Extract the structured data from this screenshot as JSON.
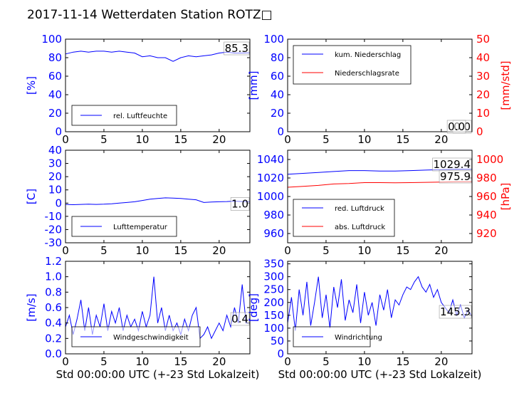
{
  "title": "2017-11-14 Wetterdaten Station ROTZ□",
  "colors": {
    "primary": "#0000ff",
    "secondary": "#ff0000",
    "text": "#000000",
    "frame": "#000000"
  },
  "chart_data": [
    {
      "id": "humidity",
      "type": "line",
      "ylabel": "[%]",
      "xlim": [
        0,
        24
      ],
      "ylim": [
        0,
        100
      ],
      "xticks": [
        0,
        5,
        10,
        15,
        20
      ],
      "yticks": [
        0,
        20,
        40,
        60,
        80,
        100
      ],
      "legend": {
        "placement": "lower-left",
        "entries": [
          {
            "label": "rel. Luftfeuchte",
            "color": "#0000ff"
          }
        ]
      },
      "current_value": "85.3",
      "series": [
        {
          "name": "rel. Luftfeuchte",
          "color": "#0000ff",
          "x": [
            0,
            1,
            2,
            3,
            4,
            5,
            6,
            7,
            8,
            9,
            10,
            11,
            12,
            13,
            14,
            15,
            16,
            17,
            18,
            19,
            20,
            21,
            22,
            23,
            24
          ],
          "y": [
            84,
            86,
            87,
            86,
            87,
            87,
            86,
            87,
            86,
            85,
            81,
            82,
            80,
            80,
            76,
            80,
            82,
            81,
            82,
            83,
            85,
            86,
            85,
            85,
            85.3
          ]
        }
      ]
    },
    {
      "id": "precipitation",
      "type": "line",
      "ylabel": "[mm]",
      "y2label": "[mm/std]",
      "xlim": [
        0,
        24
      ],
      "ylim": [
        0,
        100
      ],
      "y2lim": [
        0,
        50
      ],
      "xticks": [
        0,
        5,
        10,
        15,
        20
      ],
      "yticks": [
        0,
        20,
        40,
        60,
        80,
        100
      ],
      "y2ticks": [
        0,
        10,
        20,
        30,
        40,
        50
      ],
      "legend": {
        "placement": "upper-left",
        "entries": [
          {
            "label": "kum. Niederschlag",
            "color": "#0000ff"
          },
          {
            "label": "Niederschlagsrate",
            "color": "#ff0000"
          }
        ]
      },
      "current_values": [
        "0.0",
        "0.0"
      ],
      "series": [
        {
          "name": "kum. Niederschlag",
          "color": "#0000ff",
          "axis": "left",
          "x": [
            0,
            24
          ],
          "y": [
            0,
            0
          ]
        },
        {
          "name": "Niederschlagsrate",
          "color": "#ff0000",
          "axis": "right",
          "x": [
            0,
            24
          ],
          "y": [
            0,
            0
          ]
        }
      ]
    },
    {
      "id": "temperature",
      "type": "line",
      "ylabel": "[C]",
      "xlim": [
        0,
        24
      ],
      "ylim": [
        -30,
        40
      ],
      "xticks": [
        0,
        5,
        10,
        15,
        20
      ],
      "yticks": [
        -30,
        -20,
        -10,
        0,
        10,
        20,
        30,
        40
      ],
      "legend": {
        "placement": "lower-left",
        "entries": [
          {
            "label": "Lufttemperatur",
            "color": "#0000ff"
          }
        ]
      },
      "current_value": "1.0",
      "series": [
        {
          "name": "Lufttemperatur",
          "color": "#0000ff",
          "x": [
            0,
            1,
            2,
            3,
            4,
            5,
            6,
            7,
            8,
            9,
            10,
            11,
            12,
            13,
            14,
            15,
            16,
            17,
            18,
            19,
            20,
            21,
            22,
            23,
            24
          ],
          "y": [
            -1,
            -1.2,
            -1,
            -0.8,
            -1,
            -0.8,
            -0.5,
            0,
            0.5,
            1,
            2,
            3,
            3.5,
            4,
            3.8,
            3.5,
            3,
            2.5,
            0.5,
            0.8,
            1,
            1.2,
            1.5,
            1.2,
            1.0
          ]
        }
      ]
    },
    {
      "id": "pressure",
      "type": "line",
      "y2label": "[hPa]",
      "xlim": [
        0,
        24
      ],
      "ylim": [
        950,
        1050
      ],
      "y2lim": [
        910,
        1010
      ],
      "xticks": [
        0,
        5,
        10,
        15,
        20
      ],
      "yticks": [
        960,
        980,
        1000,
        1020,
        1040
      ],
      "y2ticks": [
        920,
        940,
        960,
        980,
        1000
      ],
      "legend": {
        "placement": "lower-left",
        "entries": [
          {
            "label": "red. Luftdruck",
            "color": "#0000ff"
          },
          {
            "label": "abs. Luftdruck",
            "color": "#ff0000"
          }
        ]
      },
      "current_values": [
        "1029.4",
        "975.9"
      ],
      "series": [
        {
          "name": "red. Luftdruck",
          "color": "#0000ff",
          "axis": "left",
          "x": [
            0,
            2,
            4,
            6,
            8,
            10,
            12,
            14,
            16,
            18,
            20,
            22,
            24
          ],
          "y": [
            1024,
            1025,
            1026,
            1027,
            1028,
            1028,
            1027.5,
            1027.5,
            1028,
            1028.5,
            1029,
            1029.5,
            1029.4
          ]
        },
        {
          "name": "abs. Luftdruck",
          "color": "#ff0000",
          "axis": "right",
          "x": [
            0,
            2,
            4,
            6,
            8,
            10,
            12,
            14,
            16,
            18,
            20,
            22,
            24
          ],
          "y": [
            970,
            971,
            972,
            973.5,
            974,
            975,
            975,
            974.8,
            975,
            975.3,
            975.6,
            976,
            975.9
          ]
        }
      ]
    },
    {
      "id": "windspeed",
      "type": "line",
      "ylabel": "[m/s]",
      "xlabel": "Std 00:00:00 UTC (+-23 Std Lokalzeit)",
      "xlim": [
        0,
        24
      ],
      "ylim": [
        0,
        1.2
      ],
      "xticks": [
        0,
        5,
        10,
        15,
        20
      ],
      "yticks": [
        0.0,
        0.2,
        0.4,
        0.6,
        0.8,
        1.0,
        1.2
      ],
      "legend": {
        "placement": "lower-left",
        "entries": [
          {
            "label": "Windgeschwindigkeit",
            "color": "#0000ff"
          }
        ]
      },
      "current_value": "0.4",
      "series": [
        {
          "name": "Windgeschwindigkeit",
          "color": "#0000ff",
          "x": [
            0,
            0.5,
            1,
            1.5,
            2,
            2.5,
            3,
            3.5,
            4,
            4.5,
            5,
            5.5,
            6,
            6.5,
            7,
            7.5,
            8,
            8.5,
            9,
            9.5,
            10,
            10.5,
            11,
            11.5,
            12,
            12.5,
            13,
            13.5,
            14,
            14.5,
            15,
            15.5,
            16,
            16.5,
            17,
            17.5,
            18,
            18.5,
            19,
            19.5,
            20,
            20.5,
            21,
            21.5,
            22,
            22.5,
            23,
            23.5,
            24
          ],
          "y": [
            0.35,
            0.5,
            0.25,
            0.45,
            0.7,
            0.3,
            0.6,
            0.25,
            0.5,
            0.35,
            0.65,
            0.3,
            0.55,
            0.4,
            0.6,
            0.3,
            0.5,
            0.35,
            0.45,
            0.3,
            0.55,
            0.35,
            0.5,
            1.0,
            0.4,
            0.6,
            0.3,
            0.5,
            0.3,
            0.4,
            0.25,
            0.45,
            0.3,
            0.5,
            0.6,
            0.2,
            0.25,
            0.35,
            0.2,
            0.3,
            0.4,
            0.3,
            0.5,
            0.35,
            0.6,
            0.4,
            0.9,
            0.4,
            0.4
          ]
        }
      ]
    },
    {
      "id": "winddirection",
      "type": "line",
      "ylabel": "[deg]",
      "xlabel": "Std 00:00:00 UTC (+-23 Std Lokalzeit)",
      "xlim": [
        0,
        24
      ],
      "ylim": [
        0,
        360
      ],
      "xticks": [
        0,
        5,
        10,
        15,
        20
      ],
      "yticks": [
        0,
        50,
        100,
        150,
        200,
        250,
        300,
        350
      ],
      "legend": {
        "placement": "lower-left",
        "entries": [
          {
            "label": "Windrichtung",
            "color": "#0000ff"
          }
        ]
      },
      "current_value": "145.3",
      "series": [
        {
          "name": "Windrichtung",
          "color": "#0000ff",
          "x": [
            0,
            0.5,
            1,
            1.5,
            2,
            2.5,
            3,
            3.5,
            4,
            4.5,
            5,
            5.5,
            6,
            6.5,
            7,
            7.5,
            8,
            8.5,
            9,
            9.5,
            10,
            10.5,
            11,
            11.5,
            12,
            12.5,
            13,
            13.5,
            14,
            14.5,
            15,
            15.5,
            16,
            16.5,
            17,
            17.5,
            18,
            18.5,
            19,
            19.5,
            20,
            20.5,
            21,
            21.5,
            22,
            22.5,
            23,
            23.5,
            24
          ],
          "y": [
            120,
            220,
            90,
            250,
            150,
            280,
            110,
            200,
            300,
            140,
            230,
            100,
            260,
            180,
            290,
            130,
            210,
            160,
            270,
            120,
            240,
            150,
            200,
            110,
            230,
            170,
            250,
            140,
            210,
            190,
            230,
            260,
            250,
            280,
            300,
            260,
            240,
            270,
            220,
            250,
            200,
            180,
            160,
            210,
            150,
            190,
            140,
            170,
            145
          ]
        }
      ]
    }
  ]
}
